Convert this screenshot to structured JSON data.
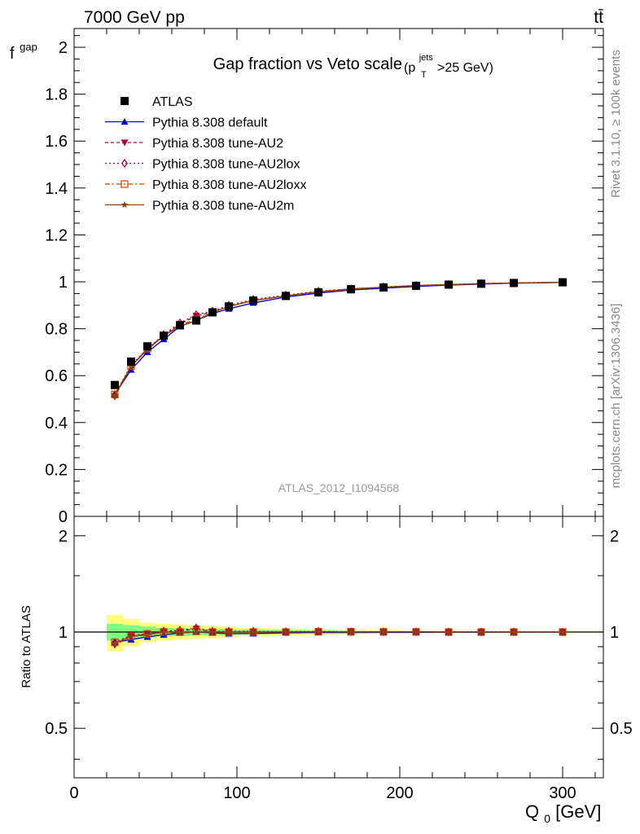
{
  "header": {
    "energy": "7000 GeV pp",
    "process": "tt̄",
    "side_rivet": "Rivet 3.1.10, ≥ 100k events",
    "side_mcplots": "mcplots.cern.ch [arXiv:1306.3436]",
    "analysis_id": "ATLAS_2012_I1094568"
  },
  "chart_data": [
    {
      "type": "line",
      "title": "Gap fraction vs Veto scale",
      "title_cut": {
        "p": "(p",
        "sup": "jets",
        "sub": "T",
        "tail": ">25 GeV)"
      },
      "ylabel": "f",
      "ylabel_sub": "gap",
      "xlim": [
        0,
        325
      ],
      "ylim": [
        0,
        2.08
      ],
      "yticks": [
        0,
        0.2,
        0.4,
        0.6,
        0.8,
        1,
        1.2,
        1.4,
        1.6,
        1.8,
        2
      ],
      "ytick_labels": [
        "0",
        "0.2",
        "0.4",
        "0.6",
        "0.8",
        "1",
        "1.2",
        "1.4",
        "1.6",
        "1.8",
        "2"
      ],
      "legend_position": "top-left",
      "x": [
        25,
        35,
        45,
        55,
        65,
        75,
        85,
        95,
        110,
        130,
        150,
        170,
        190,
        210,
        230,
        250,
        270,
        300
      ],
      "data": {
        "name": "ATLAS",
        "color": "#000000",
        "values": [
          0.56,
          0.66,
          0.725,
          0.77,
          0.815,
          0.835,
          0.87,
          0.895,
          0.92,
          0.94,
          0.955,
          0.968,
          0.976,
          0.983,
          0.988,
          0.992,
          0.995,
          0.998
        ]
      },
      "series": [
        {
          "name": "Pythia 8.308 default",
          "color": "#0000cc",
          "dash": "",
          "marker": "triangle-up",
          "values": [
            0.52,
            0.625,
            0.7,
            0.755,
            0.81,
            0.835,
            0.865,
            0.885,
            0.91,
            0.935,
            0.952,
            0.965,
            0.973,
            0.98,
            0.986,
            0.99,
            0.994,
            0.997
          ]
        },
        {
          "name": "Pythia 8.308 tune-AU2",
          "color": "#aa0033",
          "dash": "4,3",
          "marker": "triangle-down",
          "values": [
            0.51,
            0.64,
            0.715,
            0.77,
            0.82,
            0.855,
            0.87,
            0.895,
            0.92,
            0.94,
            0.958,
            0.97,
            0.977,
            0.984,
            0.988,
            0.992,
            0.995,
            0.998
          ]
        },
        {
          "name": "Pythia 8.308 tune-AU2lox",
          "color": "#aa0033",
          "dash": "2,3",
          "marker": "diamond-open",
          "values": [
            0.52,
            0.645,
            0.715,
            0.775,
            0.825,
            0.86,
            0.875,
            0.9,
            0.925,
            0.943,
            0.96,
            0.97,
            0.978,
            0.985,
            0.989,
            0.993,
            0.996,
            0.998
          ]
        },
        {
          "name": "Pythia 8.308 tune-AU2loxx",
          "color": "#cc4400",
          "dash": "6,3,2,3",
          "marker": "square-open",
          "values": [
            0.52,
            0.64,
            0.715,
            0.77,
            0.815,
            0.84,
            0.87,
            0.895,
            0.92,
            0.94,
            0.957,
            0.97,
            0.977,
            0.984,
            0.988,
            0.992,
            0.995,
            0.998
          ]
        },
        {
          "name": "Pythia 8.308 tune-AU2m",
          "color": "#8b4500",
          "dash": "",
          "marker": "star",
          "values": [
            0.515,
            0.64,
            0.71,
            0.77,
            0.81,
            0.835,
            0.87,
            0.895,
            0.92,
            0.94,
            0.957,
            0.968,
            0.977,
            0.984,
            0.988,
            0.992,
            0.995,
            0.998
          ]
        }
      ]
    },
    {
      "type": "line",
      "ylabel": "Ratio to ATLAS",
      "xlabel": "Q",
      "xlabel_sub": "0",
      "xlabel_unit": " [GeV]",
      "xlim": [
        0,
        325
      ],
      "xticks": [
        0,
        100,
        200,
        300
      ],
      "xtick_labels": [
        "0",
        "100",
        "200",
        "300"
      ],
      "ylim": [
        0.35,
        2.3
      ],
      "yticks": [
        0.5,
        1,
        2
      ],
      "ytick_labels": [
        "0.5",
        "1",
        "2"
      ],
      "log_y": true,
      "band_edges": [
        20,
        30,
        40,
        50,
        60,
        70,
        80,
        90,
        100,
        120,
        140,
        160,
        180,
        200,
        220,
        240,
        260,
        280,
        325
      ],
      "band_outer": [
        0.13,
        0.1,
        0.07,
        0.06,
        0.055,
        0.05,
        0.045,
        0.04,
        0.03,
        0.025,
        0.02,
        0.015,
        0.012,
        0.01,
        0.008,
        0.006,
        0.005,
        0.004
      ],
      "band_inner": [
        0.06,
        0.05,
        0.04,
        0.03,
        0.028,
        0.025,
        0.022,
        0.02,
        0.016,
        0.013,
        0.01,
        0.008,
        0.006,
        0.005,
        0.004,
        0.003,
        0.003,
        0.002
      ],
      "band_colors": {
        "outer": "#ffff7f",
        "inner": "#7fff7f"
      },
      "reference": 1.0
    }
  ]
}
